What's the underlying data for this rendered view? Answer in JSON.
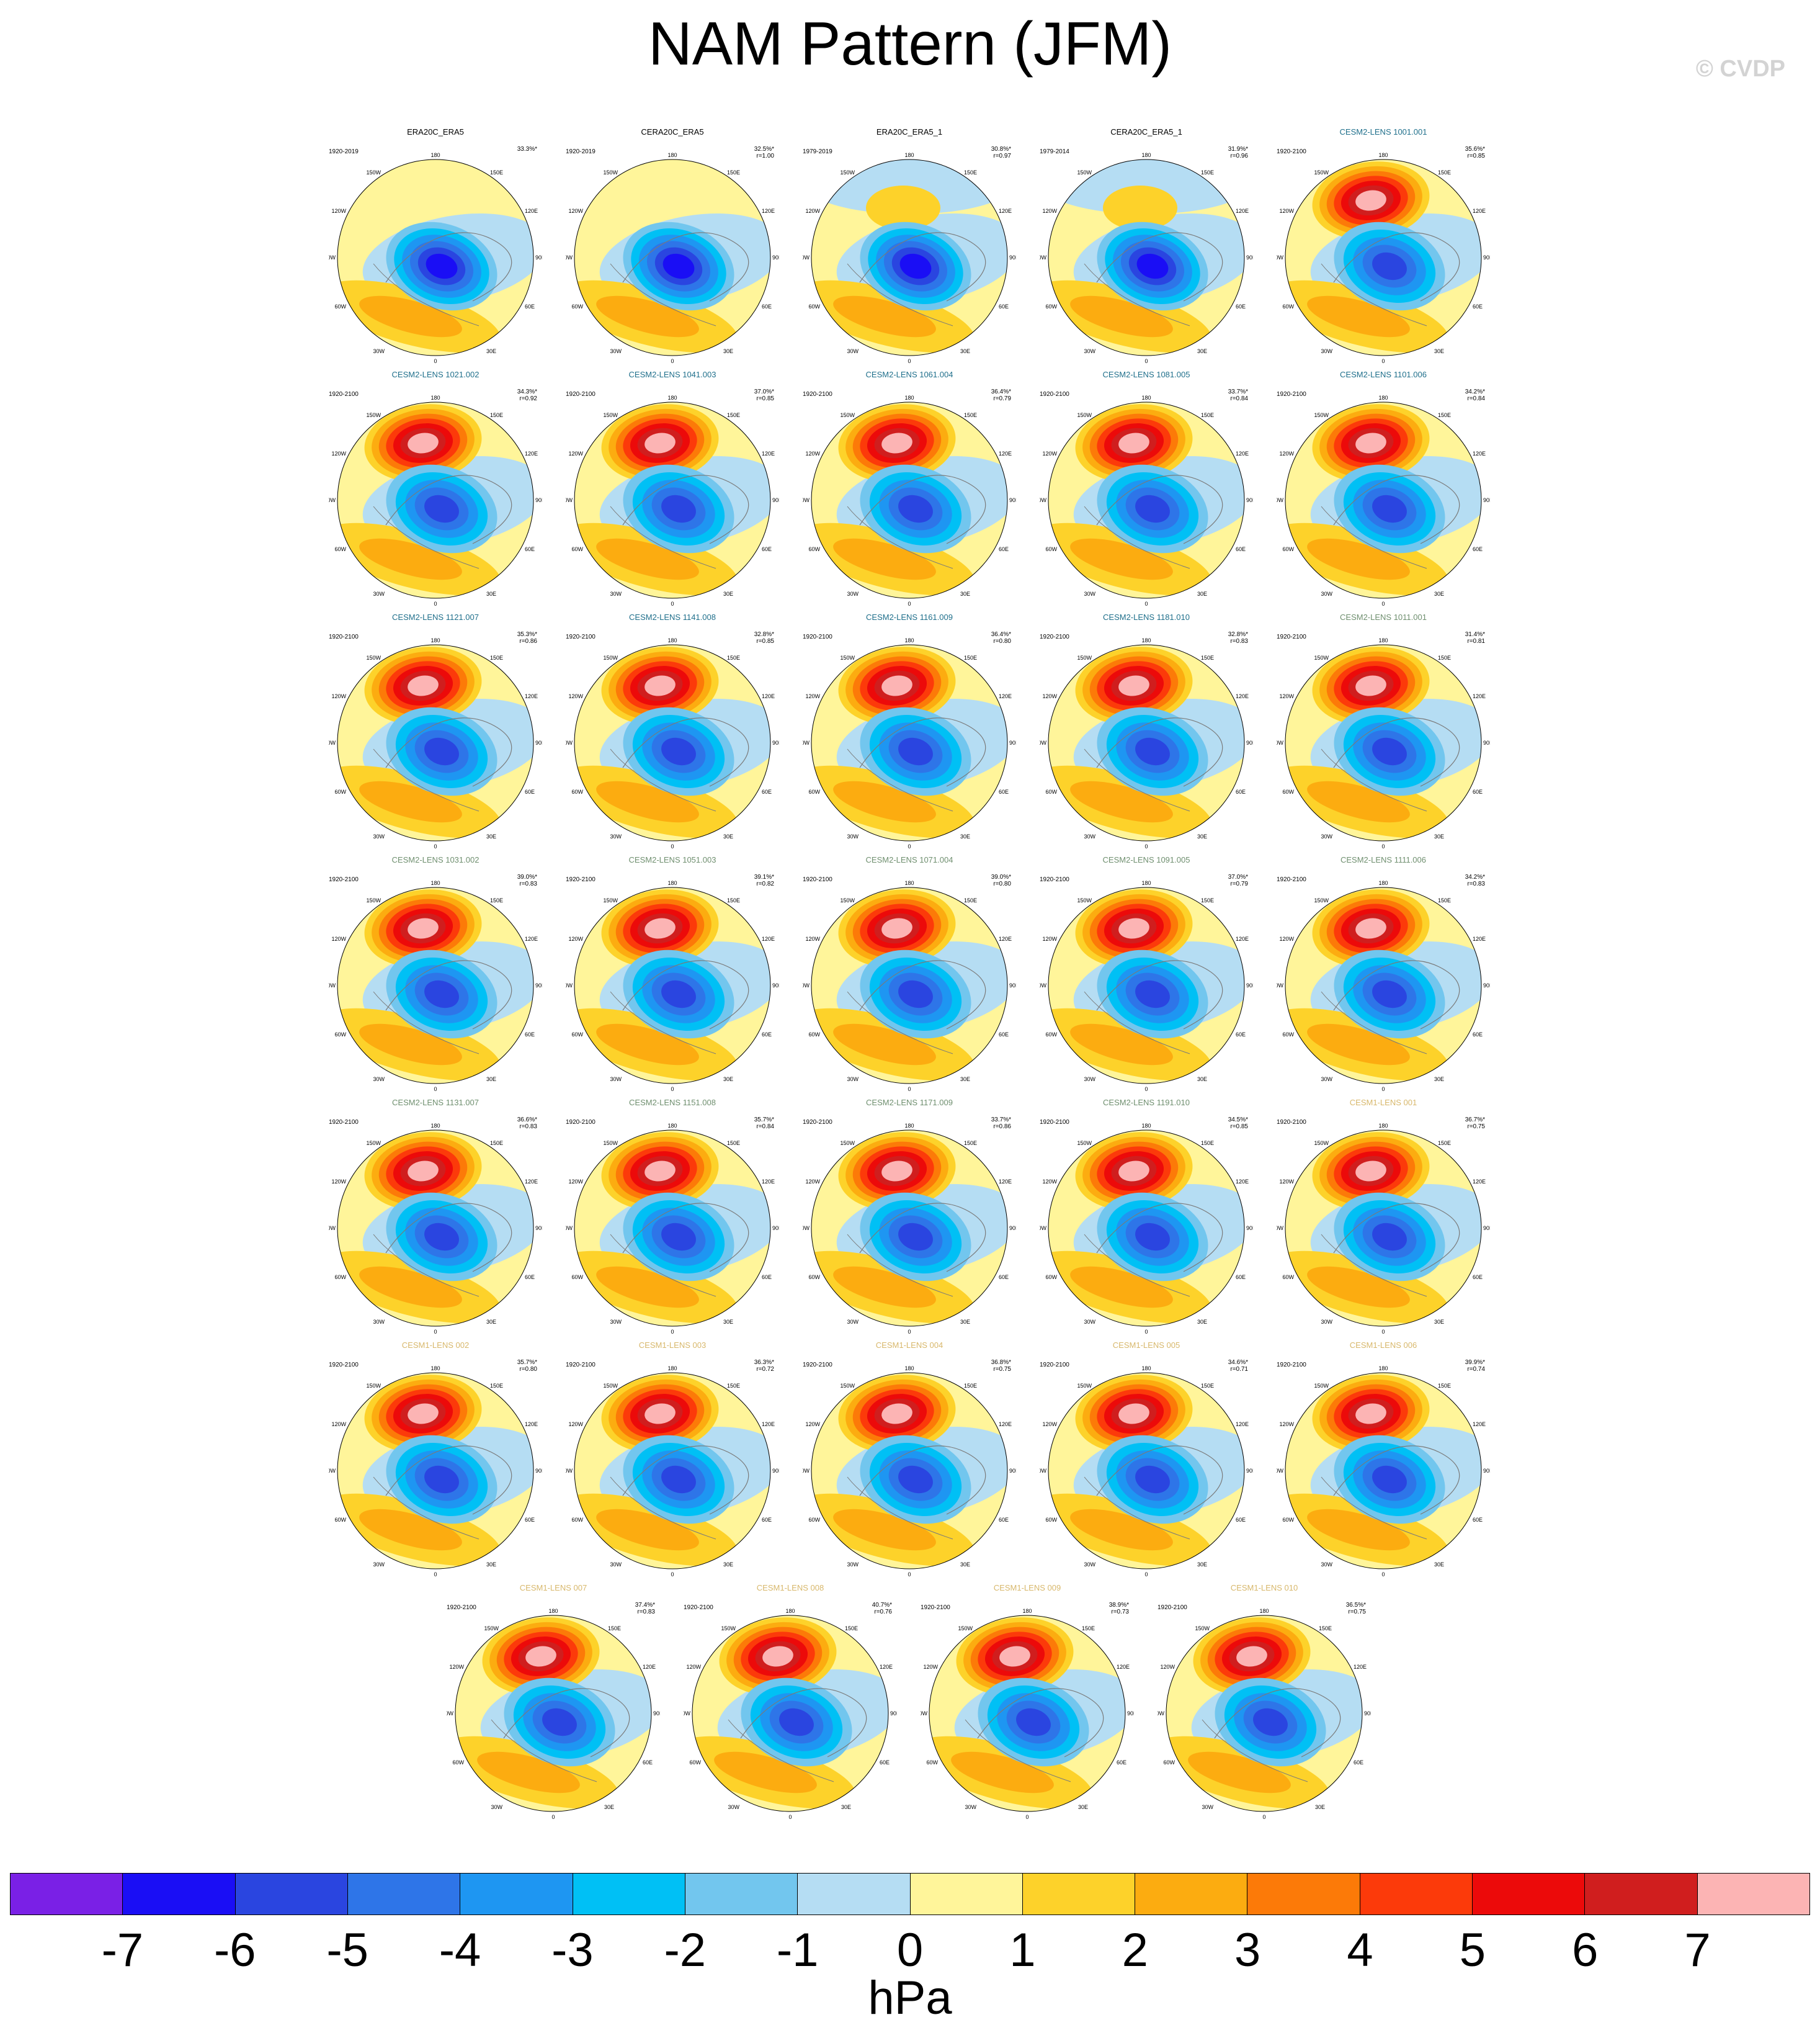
{
  "title": "NAM Pattern (JFM)",
  "copyright": "© CVDP",
  "colors": {
    "name_obs": "#000000",
    "name_cesm2_a": "#1f6f8b",
    "name_cesm2_b": "#6f8f6f",
    "name_cesm1": "#d8b86c"
  },
  "map_labels": {
    "top": "180",
    "bottom": "0",
    "upper_left": "150W",
    "upper_right": "150E",
    "mid_left": "120W",
    "mid_right": "120E",
    "left": "90W",
    "right": "90E",
    "lower_mid_left": "60W",
    "lower_mid_right": "60E",
    "lower_left": "30W",
    "lower_right": "30E"
  },
  "panels": [
    {
      "name": "ERA20C_ERA5",
      "group": "obs",
      "period": "1920-2019",
      "pct": "33.3%*",
      "r": ""
    },
    {
      "name": "CERA20C_ERA5",
      "group": "obs",
      "period": "1920-2019",
      "pct": "32.5%*",
      "r": "r=1.00"
    },
    {
      "name": "ERA20C_ERA5_1",
      "group": "obs",
      "period": "1979-2019",
      "pct": "30.8%*",
      "r": "r=0.97"
    },
    {
      "name": "CERA20C_ERA5_1",
      "group": "obs",
      "period": "1979-2014",
      "pct": "31.9%*",
      "r": "r=0.96"
    },
    {
      "name": "CESM2-LENS 1001.001",
      "group": "cesm2_a",
      "period": "1920-2100",
      "pct": "35.6%*",
      "r": "r=0.85"
    },
    {
      "name": "CESM2-LENS 1021.002",
      "group": "cesm2_a",
      "period": "1920-2100",
      "pct": "34.3%*",
      "r": "r=0.92"
    },
    {
      "name": "CESM2-LENS 1041.003",
      "group": "cesm2_a",
      "period": "1920-2100",
      "pct": "37.0%*",
      "r": "r=0.85"
    },
    {
      "name": "CESM2-LENS 1061.004",
      "group": "cesm2_a",
      "period": "1920-2100",
      "pct": "36.4%*",
      "r": "r=0.79"
    },
    {
      "name": "CESM2-LENS 1081.005",
      "group": "cesm2_a",
      "period": "1920-2100",
      "pct": "33.7%*",
      "r": "r=0.84"
    },
    {
      "name": "CESM2-LENS 1101.006",
      "group": "cesm2_a",
      "period": "1920-2100",
      "pct": "34.2%*",
      "r": "r=0.84"
    },
    {
      "name": "CESM2-LENS 1121.007",
      "group": "cesm2_a",
      "period": "1920-2100",
      "pct": "35.3%*",
      "r": "r=0.86"
    },
    {
      "name": "CESM2-LENS 1141.008",
      "group": "cesm2_a",
      "period": "1920-2100",
      "pct": "32.8%*",
      "r": "r=0.85"
    },
    {
      "name": "CESM2-LENS 1161.009",
      "group": "cesm2_a",
      "period": "1920-2100",
      "pct": "36.4%*",
      "r": "r=0.80"
    },
    {
      "name": "CESM2-LENS 1181.010",
      "group": "cesm2_a",
      "period": "1920-2100",
      "pct": "32.8%*",
      "r": "r=0.83"
    },
    {
      "name": "CESM2-LENS 1011.001",
      "group": "cesm2_b",
      "period": "1920-2100",
      "pct": "31.4%*",
      "r": "r=0.81"
    },
    {
      "name": "CESM2-LENS 1031.002",
      "group": "cesm2_b",
      "period": "1920-2100",
      "pct": "39.0%*",
      "r": "r=0.83"
    },
    {
      "name": "CESM2-LENS 1051.003",
      "group": "cesm2_b",
      "period": "1920-2100",
      "pct": "39.1%*",
      "r": "r=0.82"
    },
    {
      "name": "CESM2-LENS 1071.004",
      "group": "cesm2_b",
      "period": "1920-2100",
      "pct": "39.0%*",
      "r": "r=0.80"
    },
    {
      "name": "CESM2-LENS 1091.005",
      "group": "cesm2_b",
      "period": "1920-2100",
      "pct": "37.0%*",
      "r": "r=0.79"
    },
    {
      "name": "CESM2-LENS 1111.006",
      "group": "cesm2_b",
      "period": "1920-2100",
      "pct": "34.2%*",
      "r": "r=0.83"
    },
    {
      "name": "CESM2-LENS 1131.007",
      "group": "cesm2_b",
      "period": "1920-2100",
      "pct": "36.6%*",
      "r": "r=0.83"
    },
    {
      "name": "CESM2-LENS 1151.008",
      "group": "cesm2_b",
      "period": "1920-2100",
      "pct": "35.7%*",
      "r": "r=0.84"
    },
    {
      "name": "CESM2-LENS 1171.009",
      "group": "cesm2_b",
      "period": "1920-2100",
      "pct": "33.7%*",
      "r": "r=0.86"
    },
    {
      "name": "CESM2-LENS 1191.010",
      "group": "cesm2_b",
      "period": "1920-2100",
      "pct": "34.5%*",
      "r": "r=0.85"
    },
    {
      "name": "CESM1-LENS 001",
      "group": "cesm1",
      "period": "1920-2100",
      "pct": "36.7%*",
      "r": "r=0.75"
    },
    {
      "name": "CESM1-LENS 002",
      "group": "cesm1",
      "period": "1920-2100",
      "pct": "35.7%*",
      "r": "r=0.80"
    },
    {
      "name": "CESM1-LENS 003",
      "group": "cesm1",
      "period": "1920-2100",
      "pct": "36.3%*",
      "r": "r=0.72"
    },
    {
      "name": "CESM1-LENS 004",
      "group": "cesm1",
      "period": "1920-2100",
      "pct": "36.8%*",
      "r": "r=0.75"
    },
    {
      "name": "CESM1-LENS 005",
      "group": "cesm1",
      "period": "1920-2100",
      "pct": "34.6%*",
      "r": "r=0.71"
    },
    {
      "name": "CESM1-LENS 006",
      "group": "cesm1",
      "period": "1920-2100",
      "pct": "39.9%*",
      "r": "r=0.74"
    },
    {
      "name": "CESM1-LENS 007",
      "group": "cesm1",
      "period": "1920-2100",
      "pct": "37.4%*",
      "r": "r=0.83"
    },
    {
      "name": "CESM1-LENS 008",
      "group": "cesm1",
      "period": "1920-2100",
      "pct": "40.7%*",
      "r": "r=0.76"
    },
    {
      "name": "CESM1-LENS 009",
      "group": "cesm1",
      "period": "1920-2100",
      "pct": "38.9%*",
      "r": "r=0.73"
    },
    {
      "name": "CESM1-LENS 010",
      "group": "cesm1",
      "period": "1920-2100",
      "pct": "36.5%*",
      "r": "r=0.75"
    }
  ],
  "colorbar": {
    "unit": "hPa",
    "ticks": [
      "-7",
      "-6",
      "-5",
      "-4",
      "-3",
      "-2",
      "-1",
      "0",
      "1",
      "2",
      "3",
      "4",
      "5",
      "6",
      "7"
    ],
    "colors": [
      "#7a20e6",
      "#1a0ef5",
      "#2a45e0",
      "#2e75e8",
      "#1e96f2",
      "#00c0f5",
      "#72c6ee",
      "#b5ddf3",
      "#fff59a",
      "#fdd22a",
      "#fcac10",
      "#fc7a08",
      "#fc3a0a",
      "#ec0a0a",
      "#d01e1e",
      "#fcb4b4"
    ]
  }
}
